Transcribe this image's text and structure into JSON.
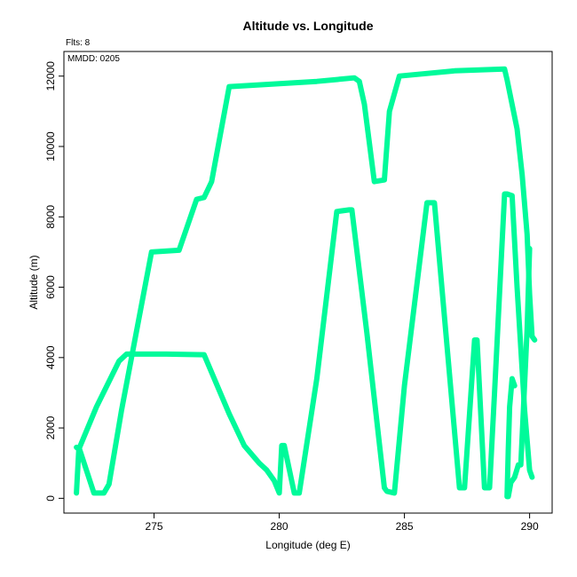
{
  "chart_data": {
    "type": "line",
    "title": "Altitude vs. Longitude",
    "xlabel": "Longitude (deg E)",
    "ylabel": "Altitude (m)",
    "xlim": [
      271.4,
      290.9
    ],
    "ylim": [
      -420,
      12700
    ],
    "x_ticks": [
      275,
      280,
      285,
      290
    ],
    "y_ticks": [
      0,
      2000,
      4000,
      6000,
      8000,
      10000,
      12000
    ],
    "grid": false,
    "line_color": "#00FA9A",
    "annotations": [
      "Flts: 8",
      "MMDD: 0205"
    ],
    "series": [
      {
        "x": [
          271.9,
          272.0,
          272.6,
          273.0,
          273.2,
          273.7,
          274.9,
          276.0,
          276.7,
          277.0,
          277.3,
          278.0,
          281.5,
          283.0,
          283.2,
          283.4,
          283.8,
          284.2,
          284.4,
          284.8,
          287.0,
          289.0,
          289.1,
          289.5,
          289.7,
          289.9,
          290.0,
          290.1,
          290.2
        ],
        "y": [
          150,
          1450,
          150,
          150,
          400,
          2500,
          7000,
          7050,
          8500,
          8550,
          9000,
          11700,
          11850,
          11950,
          11850,
          11200,
          9000,
          9050,
          11000,
          12000,
          12150,
          12200,
          11900,
          10500,
          9200,
          7500,
          5800,
          4600,
          4500
        ]
      },
      {
        "x": [
          271.9,
          272.0,
          272.7,
          273.6,
          273.9,
          274.5,
          275.5,
          277.0,
          278.0,
          278.6,
          279.2,
          279.5,
          279.8,
          280.0,
          280.1,
          280.2,
          280.6,
          280.8,
          281.5,
          282.3,
          282.8,
          282.9,
          283.5,
          284.2,
          284.3,
          284.6,
          285.0,
          285.9,
          286.2,
          287.2,
          287.4,
          287.8,
          287.9,
          288.2,
          288.3,
          288.4,
          288.6,
          289.0,
          289.1,
          289.3,
          289.5,
          289.8,
          290.0,
          290.1
        ],
        "y": [
          1450,
          1400,
          2600,
          3900,
          4100,
          4100,
          4100,
          4080,
          2400,
          1500,
          1000,
          800,
          500,
          150,
          1500,
          1500,
          150,
          150,
          3400,
          8150,
          8200,
          8200,
          4700,
          300,
          200,
          150,
          3200,
          8400,
          8400,
          300,
          300,
          4500,
          4500,
          300,
          300,
          300,
          3000,
          8650,
          8650,
          8600,
          6000,
          2500,
          800,
          600
        ]
      },
      {
        "x": [
          289.15,
          289.25,
          289.4,
          289.55,
          289.65,
          289.75,
          289.9,
          290.0
        ],
        "y": [
          50,
          450,
          600,
          950,
          950,
          2500,
          4800,
          7100
        ]
      },
      {
        "x": [
          289.1,
          289.15,
          289.2,
          289.3,
          289.4
        ],
        "y": [
          50,
          1400,
          2600,
          3400,
          3200
        ]
      }
    ]
  }
}
